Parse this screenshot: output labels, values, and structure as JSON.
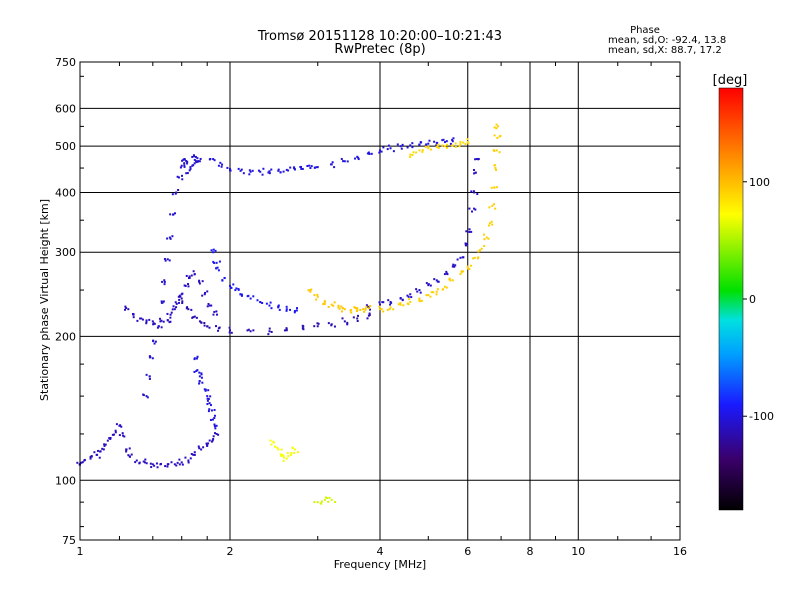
{
  "chart_data": {
    "type": "scatter",
    "title": "Tromsø 20151128 10:20:00–10:21:43",
    "subtitle": "RwPretec (8p)",
    "xlabel": "Frequency [MHz]",
    "ylabel": "Stationary phase Virtual Height [km]",
    "x_scale": "log",
    "y_scale": "log",
    "xlim": [
      1,
      16
    ],
    "ylim": [
      75,
      750
    ],
    "grid": true,
    "x_ticks": [
      1,
      2,
      4,
      6,
      8,
      10,
      16
    ],
    "x_tick_labels": [
      "1",
      "2",
      "4",
      "6",
      "8",
      "10",
      "16"
    ],
    "y_ticks": [
      75,
      100,
      200,
      300,
      400,
      500,
      600,
      750
    ],
    "y_tick_labels": [
      "75",
      "100",
      "200",
      "300",
      "400",
      "500",
      "600",
      "750"
    ],
    "stats": {
      "header": "Phase",
      "o_line": "mean, sd,O: -92.4, 13.8",
      "x_line": "mean, sd,X:  88.7, 17.2"
    },
    "colorbar": {
      "label": "[deg]",
      "range": [
        -180,
        180
      ],
      "ticks": [
        100,
        0,
        -100
      ],
      "tick_labels": [
        "100",
        "0",
        "-100"
      ]
    },
    "series": [
      {
        "color_value": -110,
        "points": [
          [
            1.0,
            108
          ],
          [
            1.02,
            110
          ],
          [
            1.05,
            111
          ],
          [
            1.08,
            113
          ],
          [
            1.1,
            115
          ],
          [
            1.12,
            118
          ],
          [
            1.15,
            122
          ],
          [
            1.18,
            126
          ],
          [
            1.2,
            130
          ],
          [
            1.22,
            124
          ],
          [
            1.24,
            116
          ],
          [
            1.26,
            112
          ],
          [
            1.3,
            110
          ],
          [
            1.35,
            109
          ],
          [
            1.4,
            108
          ],
          [
            1.45,
            108
          ],
          [
            1.5,
            108
          ],
          [
            1.55,
            108
          ],
          [
            1.6,
            109
          ],
          [
            1.65,
            110
          ],
          [
            1.7,
            113
          ],
          [
            1.75,
            116
          ],
          [
            1.8,
            118
          ],
          [
            1.85,
            122
          ],
          [
            1.88,
            125
          ]
        ]
      },
      {
        "color_value": -110,
        "points": [
          [
            1.25,
            228
          ],
          [
            1.28,
            222
          ],
          [
            1.32,
            218
          ],
          [
            1.36,
            216
          ],
          [
            1.4,
            215
          ],
          [
            1.45,
            215
          ],
          [
            1.5,
            216
          ],
          [
            1.52,
            222
          ],
          [
            1.55,
            228
          ],
          [
            1.58,
            235
          ],
          [
            1.6,
            245
          ],
          [
            1.63,
            255
          ],
          [
            1.66,
            265
          ],
          [
            1.7,
            270
          ],
          [
            1.74,
            258
          ],
          [
            1.78,
            245
          ],
          [
            1.82,
            232
          ],
          [
            1.86,
            225
          ]
        ]
      },
      {
        "color_value": -115,
        "points": [
          [
            1.6,
            240
          ],
          [
            1.65,
            228
          ],
          [
            1.7,
            220
          ],
          [
            1.75,
            214
          ],
          [
            1.8,
            210
          ],
          [
            1.9,
            208
          ],
          [
            2.0,
            206
          ],
          [
            2.2,
            205
          ],
          [
            2.4,
            205
          ],
          [
            2.6,
            206
          ],
          [
            2.8,
            208
          ],
          [
            3.0,
            210
          ],
          [
            3.2,
            212
          ],
          [
            3.4,
            215
          ],
          [
            3.6,
            218
          ],
          [
            3.8,
            221
          ]
        ]
      },
      {
        "color_value": -105,
        "points": [
          [
            1.36,
            150
          ],
          [
            1.38,
            165
          ],
          [
            1.4,
            180
          ],
          [
            1.42,
            195
          ],
          [
            1.44,
            210
          ],
          [
            1.46,
            235
          ],
          [
            1.48,
            260
          ],
          [
            1.5,
            290
          ],
          [
            1.52,
            320
          ],
          [
            1.54,
            360
          ],
          [
            1.56,
            400
          ],
          [
            1.58,
            430
          ],
          [
            1.6,
            455
          ],
          [
            1.62,
            470
          ],
          [
            1.64,
            460
          ],
          [
            1.66,
            445
          ],
          [
            1.68,
            455
          ],
          [
            1.7,
            468
          ],
          [
            1.72,
            472
          ],
          [
            1.74,
            465
          ]
        ]
      },
      {
        "color_value": -100,
        "points": [
          [
            1.85,
            470
          ],
          [
            1.9,
            455
          ],
          [
            2.0,
            448
          ],
          [
            2.1,
            444
          ],
          [
            2.2,
            442
          ],
          [
            2.3,
            442
          ],
          [
            2.4,
            443
          ],
          [
            2.5,
            444
          ],
          [
            2.6,
            446
          ],
          [
            2.7,
            447
          ],
          [
            2.8,
            448
          ],
          [
            2.9,
            450
          ],
          [
            3.0,
            452
          ],
          [
            3.2,
            458
          ],
          [
            3.4,
            465
          ],
          [
            3.6,
            475
          ],
          [
            3.8,
            485
          ],
          [
            4.0,
            490
          ],
          [
            4.2,
            495
          ],
          [
            4.4,
            500
          ],
          [
            4.6,
            502
          ],
          [
            4.8,
            504
          ],
          [
            5.0,
            506
          ],
          [
            5.2,
            508
          ],
          [
            5.4,
            510
          ],
          [
            5.6,
            512
          ]
        ]
      },
      {
        "color_value": -108,
        "points": [
          [
            3.8,
            230
          ],
          [
            4.0,
            233
          ],
          [
            4.2,
            236
          ],
          [
            4.4,
            240
          ],
          [
            4.6,
            245
          ],
          [
            4.8,
            250
          ],
          [
            5.0,
            256
          ],
          [
            5.2,
            262
          ],
          [
            5.4,
            270
          ],
          [
            5.6,
            280
          ],
          [
            5.8,
            292
          ],
          [
            5.95,
            310
          ],
          [
            6.05,
            335
          ],
          [
            6.12,
            365
          ],
          [
            6.18,
            400
          ],
          [
            6.22,
            440
          ],
          [
            6.26,
            470
          ]
        ]
      },
      {
        "color_value": 95,
        "points": [
          [
            2.9,
            248
          ],
          [
            3.0,
            242
          ],
          [
            3.1,
            237
          ],
          [
            3.2,
            233
          ],
          [
            3.3,
            230
          ],
          [
            3.4,
            228
          ],
          [
            3.5,
            227
          ],
          [
            3.6,
            227
          ],
          [
            3.7,
            228
          ],
          [
            3.8,
            229
          ]
        ]
      },
      {
        "color_value": 92,
        "points": [
          [
            4.0,
            228
          ],
          [
            4.2,
            230
          ],
          [
            4.4,
            233
          ],
          [
            4.6,
            236
          ],
          [
            4.8,
            240
          ],
          [
            5.0,
            244
          ],
          [
            5.2,
            248
          ],
          [
            5.4,
            254
          ],
          [
            5.6,
            262
          ],
          [
            5.8,
            270
          ],
          [
            6.0,
            280
          ],
          [
            6.2,
            292
          ],
          [
            6.4,
            305
          ],
          [
            6.55,
            322
          ],
          [
            6.65,
            345
          ],
          [
            6.72,
            375
          ],
          [
            6.78,
            410
          ],
          [
            6.82,
            450
          ],
          [
            6.86,
            490
          ],
          [
            6.88,
            520
          ],
          [
            6.9,
            550
          ]
        ]
      },
      {
        "color_value": 88,
        "points": [
          [
            4.6,
            480
          ],
          [
            4.8,
            490
          ],
          [
            5.0,
            495
          ],
          [
            5.2,
            498
          ],
          [
            5.4,
            500
          ],
          [
            5.6,
            502
          ],
          [
            5.8,
            505
          ],
          [
            6.0,
            510
          ]
        ]
      },
      {
        "color_value": -95,
        "points": [
          [
            1.85,
            300
          ],
          [
            1.88,
            285
          ],
          [
            1.9,
            275
          ],
          [
            1.95,
            265
          ],
          [
            2.0,
            255
          ],
          [
            2.05,
            250
          ],
          [
            2.1,
            245
          ],
          [
            2.2,
            240
          ],
          [
            2.3,
            236
          ],
          [
            2.4,
            232
          ],
          [
            2.5,
            230
          ],
          [
            2.6,
            228
          ],
          [
            2.7,
            226
          ]
        ]
      },
      {
        "color_value": -100,
        "points": [
          [
            1.7,
            180
          ],
          [
            1.72,
            170
          ],
          [
            1.74,
            165
          ],
          [
            1.76,
            160
          ],
          [
            1.78,
            155
          ],
          [
            1.8,
            150
          ],
          [
            1.82,
            145
          ],
          [
            1.84,
            140
          ],
          [
            1.86,
            135
          ],
          [
            1.88,
            130
          ]
        ]
      },
      {
        "color_value": 70,
        "points": [
          [
            2.45,
            120
          ],
          [
            2.5,
            116
          ],
          [
            2.55,
            113
          ],
          [
            2.6,
            111
          ],
          [
            2.65,
            113
          ],
          [
            2.7,
            116
          ]
        ]
      },
      {
        "color_value": 60,
        "points": [
          [
            3.0,
            90
          ],
          [
            3.1,
            91
          ],
          [
            3.2,
            91
          ]
        ]
      }
    ]
  }
}
